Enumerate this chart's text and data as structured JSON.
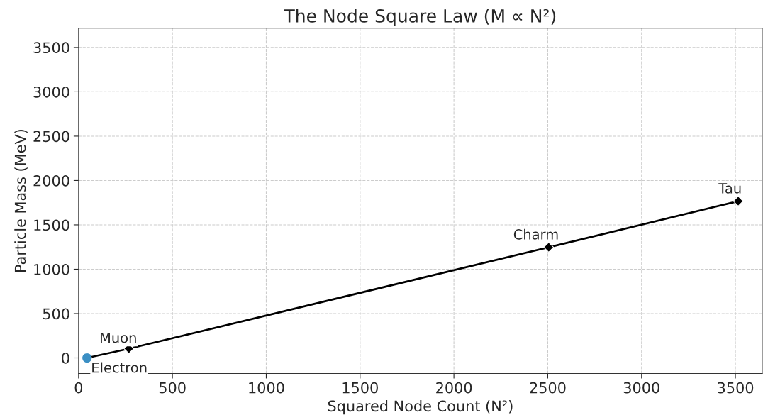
{
  "chart_data": {
    "type": "line",
    "title": "The Node Square Law (M ∝ N²)",
    "xlabel": "Squared Node Count (N²)",
    "ylabel": "Particle Mass (MeV)",
    "series": [
      {
        "color": "#000000",
        "marker": "diamond",
        "x": [
          45,
          268,
          2505,
          3515
        ],
        "values": [
          0,
          104,
          1247,
          1767
        ]
      },
      {
        "type": "scatter",
        "color": "#3b8fc4",
        "marker": "circle",
        "x": [
          45
        ],
        "values": [
          0
        ]
      }
    ],
    "annotations": [
      {
        "text": "Electron",
        "x": 45,
        "y": 0
      },
      {
        "text": "Muon",
        "x": 268,
        "y": 104
      },
      {
        "text": "Charm",
        "x": 2505,
        "y": 1247
      },
      {
        "text": "Tau",
        "x": 3515,
        "y": 1767
      }
    ],
    "xlim": [
      0,
      3643
    ],
    "ylim": [
      -176,
      3717
    ],
    "xticks": [
      0,
      500,
      1000,
      1500,
      2000,
      2500,
      3000,
      3500
    ],
    "yticks": [
      0,
      500,
      1000,
      1500,
      2000,
      2500,
      3000,
      3500
    ],
    "grid": true,
    "line_style": "solid",
    "legend": false
  }
}
